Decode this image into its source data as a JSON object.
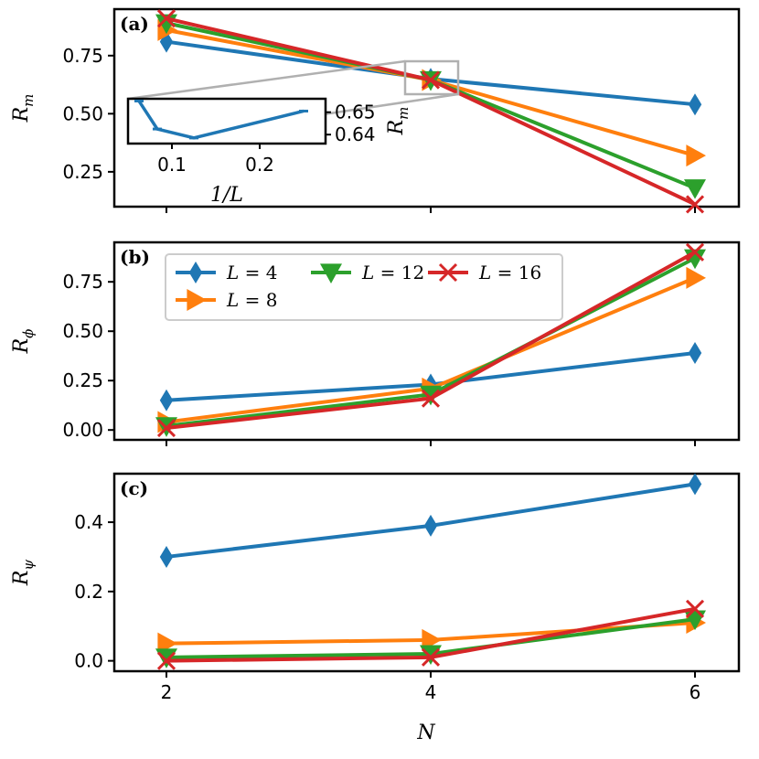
{
  "chart_data": {
    "type": "line",
    "xlabel": "N",
    "x": [
      2,
      4,
      6
    ],
    "xticks": [
      "2",
      "4",
      "6"
    ],
    "legend": {
      "placement": "top-left of panel (b)",
      "entries": [
        {
          "series": "L=4",
          "label_var": "L",
          "label_val": "4"
        },
        {
          "series": "L=8",
          "label_var": "L",
          "label_val": "8"
        },
        {
          "series": "L=12",
          "label_var": "L",
          "label_val": "12"
        },
        {
          "series": "L=16",
          "label_var": "L",
          "label_val": "16"
        }
      ]
    },
    "series_styles": [
      {
        "name": "L=4",
        "color": "#1f77b4",
        "marker": "thin-diamond"
      },
      {
        "name": "L=8",
        "color": "#ff7f0e",
        "marker": "triangle-right"
      },
      {
        "name": "L=12",
        "color": "#2ca02c",
        "marker": "triangle-down"
      },
      {
        "name": "L=16",
        "color": "#d62728",
        "marker": "x"
      }
    ],
    "panels": [
      {
        "label": "(a)",
        "ylabel_base": "R",
        "ylabel_sub": "m",
        "ylim": [
          0.1,
          0.95
        ],
        "yticks": [
          0.25,
          0.5,
          0.75
        ],
        "ytick_labels": [
          "0.25",
          "0.50",
          "0.75"
        ],
        "series": [
          {
            "name": "L=4",
            "values": [
              0.81,
              0.65,
              0.54
            ]
          },
          {
            "name": "L=8",
            "values": [
              0.86,
              0.645,
              0.32
            ]
          },
          {
            "name": "L=12",
            "values": [
              0.89,
              0.645,
              0.18
            ]
          },
          {
            "name": "L=16",
            "values": [
              0.91,
              0.645,
              0.11
            ]
          }
        ]
      },
      {
        "label": "(b)",
        "ylabel_base": "R",
        "ylabel_sub": "ϕ",
        "ylim": [
          -0.05,
          0.95
        ],
        "yticks": [
          0.0,
          0.25,
          0.5,
          0.75
        ],
        "ytick_labels": [
          "0.00",
          "0.25",
          "0.50",
          "0.75"
        ],
        "series": [
          {
            "name": "L=4",
            "values": [
              0.15,
              0.23,
              0.39
            ]
          },
          {
            "name": "L=8",
            "values": [
              0.04,
              0.21,
              0.77
            ]
          },
          {
            "name": "L=12",
            "values": [
              0.02,
              0.18,
              0.87
            ]
          },
          {
            "name": "L=16",
            "values": [
              0.01,
              0.16,
              0.9
            ]
          }
        ]
      },
      {
        "label": "(c)",
        "ylabel_base": "R",
        "ylabel_sub": "ψ",
        "ylim": [
          -0.03,
          0.54
        ],
        "yticks": [
          0.0,
          0.2,
          0.4
        ],
        "ytick_labels": [
          "0.0",
          "0.2",
          "0.4"
        ],
        "series": [
          {
            "name": "L=4",
            "values": [
              0.3,
              0.39,
              0.51
            ]
          },
          {
            "name": "L=8",
            "values": [
              0.05,
              0.06,
              0.11
            ]
          },
          {
            "name": "L=12",
            "values": [
              0.01,
              0.02,
              0.12
            ]
          },
          {
            "name": "L=16",
            "values": [
              0.0,
              0.01,
              0.15
            ]
          }
        ]
      }
    ],
    "inset": {
      "panel": "(a)",
      "xlabel": "1/L",
      "ylabel_base": "R",
      "ylabel_sub": "m",
      "xlim": [
        0.05,
        0.275
      ],
      "ylim": [
        0.636,
        0.656
      ],
      "xticks": [
        0.1,
        0.2
      ],
      "xtick_labels": [
        "0.1",
        "0.2"
      ],
      "yticks": [
        0.64,
        0.65
      ],
      "ytick_labels": [
        "0.64",
        "0.65"
      ],
      "x": [
        0.0625,
        0.0833,
        0.125,
        0.25
      ],
      "values": [
        0.655,
        0.6425,
        0.6385,
        0.6505
      ],
      "color": "#1f77b4"
    }
  }
}
